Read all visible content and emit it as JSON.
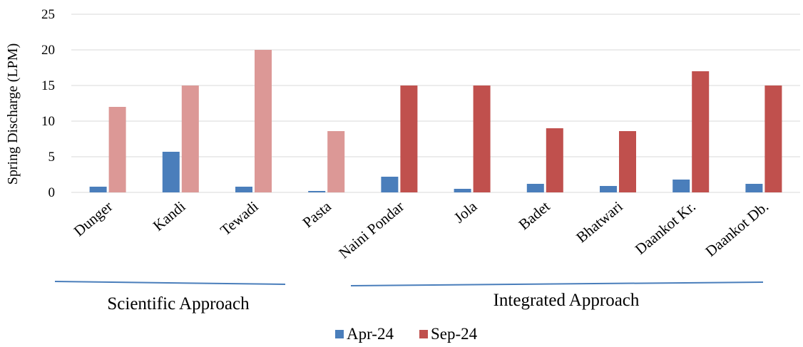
{
  "chart_data": {
    "type": "bar",
    "ylabel": "Spring Discharge (LPM)",
    "ylim": [
      0,
      25
    ],
    "yticks": [
      0,
      5,
      10,
      15,
      20,
      25
    ],
    "grid": true,
    "legend_position": "bottom",
    "categories": [
      "Dunger",
      "Kandi",
      "Tewadi",
      "Pasta",
      "Naini Pondar",
      "Jola",
      "Badet",
      "Bhatwari",
      "Daankot Kr.",
      "Daankot Db."
    ],
    "series": [
      {
        "name": "Apr-24",
        "color": "#4a7ebb",
        "values": [
          0.8,
          5.7,
          0.8,
          0.2,
          2.2,
          0.5,
          1.2,
          0.9,
          1.8,
          1.2
        ]
      },
      {
        "name": "Sep-24",
        "color": "#c0504d",
        "highlight_color": "#dc9896",
        "values": [
          12,
          15,
          20,
          8.6,
          15,
          15,
          9,
          8.6,
          17,
          15
        ]
      }
    ],
    "groups": [
      {
        "label": "Scientific Approach",
        "categories": [
          "Dunger",
          "Kandi",
          "Tewadi",
          "Pasta"
        ]
      },
      {
        "label": "Integrated Approach",
        "categories": [
          "Naini Pondar",
          "Jola",
          "Badet",
          "Bhatwari",
          "Daankot Kr.",
          "Daankot Db."
        ]
      }
    ],
    "line_color": "#4a7ebb",
    "grid_color": "#d9d9d9"
  }
}
